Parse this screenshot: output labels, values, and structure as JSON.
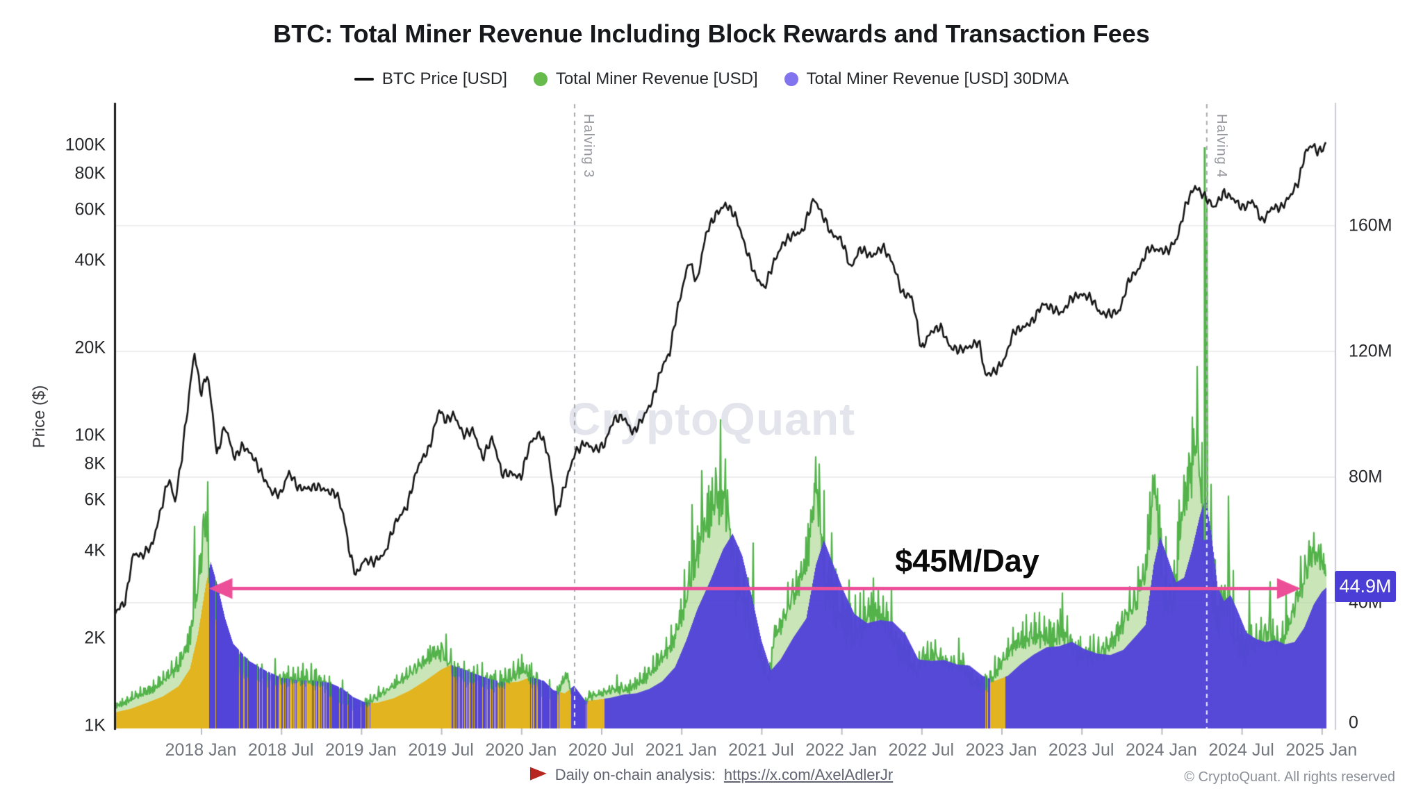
{
  "title": "BTC: Total Miner Revenue Including Block Rewards and Transaction Fees",
  "legend": [
    {
      "marker": "line",
      "color": "#111111",
      "label": "BTC Price [USD]"
    },
    {
      "marker": "dot",
      "color": "#67bb4c",
      "label": "Total Miner Revenue [USD]"
    },
    {
      "marker": "dot",
      "color": "#8273ee",
      "label": "Total Miner Revenue [USD] 30DMA"
    }
  ],
  "watermark": "CryptoQuant",
  "y_left_title": "Price ($)",
  "annotations": {
    "arrow_label": "$45M/Day",
    "current_value_label": "44.9M",
    "halving3_label": "Halving 3",
    "halving4_label": "Halving 4"
  },
  "footer": {
    "note": "Daily on-chain analysis:",
    "link": "https://x.com/AxelAdlerJr",
    "copyright": "© CryptoQuant. All rights reserved"
  },
  "colors": {
    "price_line": "#151515",
    "daily_line": "#53b34a",
    "daily_fill": "rgba(158,209,128,0.55)",
    "revenue_base_yellow": "#e2b41f",
    "dma_fill": "#5244d9",
    "arrow_pink": "#ec4f98",
    "grid": "#ededf1",
    "badge_bg": "#4b3ed6",
    "axis_left": "#1a1a1a",
    "axis_right": "#c9cbd3",
    "halving_dash": "#a7aaaf"
  },
  "chart_data": {
    "type": "line",
    "title": "BTC: Total Miner Revenue Including Block Rewards and Transaction Fees",
    "x_ticks": [
      {
        "label": "2018 Jan",
        "t": 2018.0
      },
      {
        "label": "2018 Jul",
        "t": 2018.5
      },
      {
        "label": "2019 Jan",
        "t": 2019.0
      },
      {
        "label": "2019 Jul",
        "t": 2019.5
      },
      {
        "label": "2020 Jan",
        "t": 2020.0
      },
      {
        "label": "2020 Jul",
        "t": 2020.5
      },
      {
        "label": "2021 Jan",
        "t": 2021.0
      },
      {
        "label": "2021 Jul",
        "t": 2021.5
      },
      {
        "label": "2022 Jan",
        "t": 2022.0
      },
      {
        "label": "2022 Jul",
        "t": 2022.5
      },
      {
        "label": "2023 Jan",
        "t": 2023.0
      },
      {
        "label": "2023 Jul",
        "t": 2023.5
      },
      {
        "label": "2024 Jan",
        "t": 2024.0
      },
      {
        "label": "2024 Jul",
        "t": 2024.5
      },
      {
        "label": "2025 Jan",
        "t": 2025.0
      }
    ],
    "left_axis": {
      "label": "Price ($)",
      "scale": "log",
      "ticks": [
        {
          "label": "100K",
          "value": 100000
        },
        {
          "label": "80K",
          "value": 80000
        },
        {
          "label": "60K",
          "value": 60000
        },
        {
          "label": "40K",
          "value": 40000
        },
        {
          "label": "20K",
          "value": 20000
        },
        {
          "label": "10K",
          "value": 10000
        },
        {
          "label": "8K",
          "value": 8000
        },
        {
          "label": "6K",
          "value": 6000
        },
        {
          "label": "4K",
          "value": 4000
        },
        {
          "label": "2K",
          "value": 2000
        },
        {
          "label": "1K",
          "value": 1000
        }
      ]
    },
    "right_axis": {
      "unit": "USD per day, millions",
      "scale": "linear",
      "ticks": [
        {
          "label": "160M",
          "value": 160
        },
        {
          "label": "120M",
          "value": 120
        },
        {
          "label": "80M",
          "value": 80
        },
        {
          "label": "40M",
          "value": 40
        },
        {
          "label": "0",
          "value": 0
        }
      ]
    },
    "halvings": [
      {
        "label": "Halving 3",
        "t": 2020.335
      },
      {
        "label": "Halving 4",
        "t": 2024.284,
        "spike_musd": 185
      }
    ],
    "arrow": {
      "level_musd": 45,
      "from_t": 2018.05,
      "to_t": 2024.87,
      "label": "$45M/Day"
    },
    "current_30dma_musd": 44.9,
    "yellow_era_end_t": 2020.52,
    "yellow_extra_span": [
      2022.895,
      2023.025
    ],
    "series": {
      "btc_price_usd": [
        [
          2017.466,
          2450
        ],
        [
          2017.53,
          2650
        ],
        [
          2017.58,
          3900
        ],
        [
          2017.63,
          3850
        ],
        [
          2017.7,
          4300
        ],
        [
          2017.75,
          5600
        ],
        [
          2017.8,
          7200
        ],
        [
          2017.84,
          5900
        ],
        [
          2017.88,
          8200
        ],
        [
          2017.92,
          12500
        ],
        [
          2017.96,
          19200
        ],
        [
          2018.0,
          13900
        ],
        [
          2018.04,
          16400
        ],
        [
          2018.1,
          8600
        ],
        [
          2018.15,
          10900
        ],
        [
          2018.21,
          8300
        ],
        [
          2018.26,
          9100
        ],
        [
          2018.32,
          8400
        ],
        [
          2018.38,
          7300
        ],
        [
          2018.44,
          6400
        ],
        [
          2018.5,
          6300
        ],
        [
          2018.55,
          7450
        ],
        [
          2018.61,
          6500
        ],
        [
          2018.67,
          6450
        ],
        [
          2018.73,
          6600
        ],
        [
          2018.79,
          6450
        ],
        [
          2018.85,
          6350
        ],
        [
          2018.89,
          5400
        ],
        [
          2018.93,
          3950
        ],
        [
          2018.97,
          3300
        ],
        [
          2019.02,
          3700
        ],
        [
          2019.08,
          3650
        ],
        [
          2019.15,
          3950
        ],
        [
          2019.22,
          5150
        ],
        [
          2019.29,
          5800
        ],
        [
          2019.36,
          7900
        ],
        [
          2019.43,
          9000
        ],
        [
          2019.49,
          12200
        ],
        [
          2019.53,
          11200
        ],
        [
          2019.58,
          11900
        ],
        [
          2019.64,
          10100
        ],
        [
          2019.7,
          10400
        ],
        [
          2019.76,
          8200
        ],
        [
          2019.82,
          9600
        ],
        [
          2019.88,
          7300
        ],
        [
          2019.94,
          7400
        ],
        [
          2020.0,
          7200
        ],
        [
          2020.06,
          9500
        ],
        [
          2020.12,
          10100
        ],
        [
          2020.17,
          8500
        ],
        [
          2020.22,
          5200
        ],
        [
          2020.28,
          6900
        ],
        [
          2020.34,
          8900
        ],
        [
          2020.4,
          9600
        ],
        [
          2020.46,
          9000
        ],
        [
          2020.52,
          9250
        ],
        [
          2020.58,
          11300
        ],
        [
          2020.64,
          11600
        ],
        [
          2020.7,
          10300
        ],
        [
          2020.76,
          11600
        ],
        [
          2020.82,
          13200
        ],
        [
          2020.88,
          17000
        ],
        [
          2020.93,
          19000
        ],
        [
          2020.97,
          25500
        ],
        [
          2021.01,
          32000
        ],
        [
          2021.05,
          39800
        ],
        [
          2021.1,
          33500
        ],
        [
          2021.16,
          50500
        ],
        [
          2021.22,
          57500
        ],
        [
          2021.28,
          61500
        ],
        [
          2021.34,
          56000
        ],
        [
          2021.4,
          44500
        ],
        [
          2021.46,
          36000
        ],
        [
          2021.52,
          32500
        ],
        [
          2021.58,
          39800
        ],
        [
          2021.64,
          46000
        ],
        [
          2021.7,
          48800
        ],
        [
          2021.76,
          50500
        ],
        [
          2021.83,
          66500
        ],
        [
          2021.88,
          59000
        ],
        [
          2021.94,
          50000
        ],
        [
          2022.0,
          47400
        ],
        [
          2022.06,
          37200
        ],
        [
          2022.12,
          43800
        ],
        [
          2022.19,
          41500
        ],
        [
          2022.26,
          45000
        ],
        [
          2022.32,
          39500
        ],
        [
          2022.38,
          30500
        ],
        [
          2022.44,
          29500
        ],
        [
          2022.5,
          19400
        ],
        [
          2022.56,
          22600
        ],
        [
          2022.62,
          23800
        ],
        [
          2022.68,
          20200
        ],
        [
          2022.74,
          19600
        ],
        [
          2022.8,
          19900
        ],
        [
          2022.86,
          20900
        ],
        [
          2022.9,
          16100
        ],
        [
          2022.96,
          16800
        ],
        [
          2023.02,
          18500
        ],
        [
          2023.08,
          23200
        ],
        [
          2023.14,
          23600
        ],
        [
          2023.2,
          24800
        ],
        [
          2023.26,
          28400
        ],
        [
          2023.32,
          27600
        ],
        [
          2023.38,
          26800
        ],
        [
          2023.44,
          30100
        ],
        [
          2023.5,
          30500
        ],
        [
          2023.56,
          29400
        ],
        [
          2023.62,
          25900
        ],
        [
          2023.68,
          26100
        ],
        [
          2023.74,
          26900
        ],
        [
          2023.8,
          34600
        ],
        [
          2023.86,
          37200
        ],
        [
          2023.92,
          43400
        ],
        [
          2023.98,
          42800
        ],
        [
          2024.04,
          42800
        ],
        [
          2024.1,
          48000
        ],
        [
          2024.16,
          64500
        ],
        [
          2024.21,
          72500
        ],
        [
          2024.27,
          66500
        ],
        [
          2024.33,
          60500
        ],
        [
          2024.39,
          68500
        ],
        [
          2024.45,
          66000
        ],
        [
          2024.51,
          61800
        ],
        [
          2024.57,
          65500
        ],
        [
          2024.63,
          54500
        ],
        [
          2024.69,
          60500
        ],
        [
          2024.75,
          60500
        ],
        [
          2024.81,
          67500
        ],
        [
          2024.86,
          76000
        ],
        [
          2024.9,
          95500
        ],
        [
          2024.94,
          100800
        ],
        [
          2024.98,
          94500
        ],
        [
          2025.02,
          97500
        ],
        [
          2025.027,
          100500
        ]
      ],
      "miner_revenue_30dma_musd": [
        [
          2017.466,
          5.2
        ],
        [
          2017.56,
          6.3
        ],
        [
          2017.66,
          8.2
        ],
        [
          2017.76,
          10.2
        ],
        [
          2017.86,
          13.5
        ],
        [
          2017.93,
          19
        ],
        [
          2017.98,
          30
        ],
        [
          2018.03,
          46
        ],
        [
          2018.06,
          53
        ],
        [
          2018.1,
          46
        ],
        [
          2018.15,
          35
        ],
        [
          2018.2,
          27
        ],
        [
          2018.3,
          21.5
        ],
        [
          2018.4,
          18.5
        ],
        [
          2018.5,
          16.2
        ],
        [
          2018.6,
          15.4
        ],
        [
          2018.7,
          15.2
        ],
        [
          2018.8,
          14.6
        ],
        [
          2018.88,
          12.8
        ],
        [
          2018.95,
          10
        ],
        [
          2019.02,
          8.4
        ],
        [
          2019.1,
          8.2
        ],
        [
          2019.2,
          9.6
        ],
        [
          2019.3,
          12
        ],
        [
          2019.4,
          15.2
        ],
        [
          2019.5,
          18.8
        ],
        [
          2019.56,
          20.3
        ],
        [
          2019.62,
          19.2
        ],
        [
          2019.7,
          17.6
        ],
        [
          2019.8,
          15.8
        ],
        [
          2019.9,
          14.6
        ],
        [
          2019.98,
          14.9
        ],
        [
          2020.06,
          16.4
        ],
        [
          2020.14,
          15.2
        ],
        [
          2020.2,
          12.2
        ],
        [
          2020.27,
          11.2
        ],
        [
          2020.33,
          13.6
        ],
        [
          2020.4,
          8.8
        ],
        [
          2020.48,
          9.2
        ],
        [
          2020.56,
          9.8
        ],
        [
          2020.64,
          10.8
        ],
        [
          2020.72,
          11.2
        ],
        [
          2020.8,
          12.6
        ],
        [
          2020.88,
          15
        ],
        [
          2020.96,
          19.5
        ],
        [
          2021.03,
          28
        ],
        [
          2021.1,
          38
        ],
        [
          2021.18,
          47
        ],
        [
          2021.26,
          57
        ],
        [
          2021.32,
          62
        ],
        [
          2021.38,
          55
        ],
        [
          2021.44,
          42
        ],
        [
          2021.5,
          28
        ],
        [
          2021.56,
          18.5
        ],
        [
          2021.62,
          22
        ],
        [
          2021.7,
          29
        ],
        [
          2021.78,
          35
        ],
        [
          2021.84,
          52
        ],
        [
          2021.89,
          60
        ],
        [
          2021.95,
          52
        ],
        [
          2022.02,
          43
        ],
        [
          2022.08,
          36.5
        ],
        [
          2022.16,
          33.5
        ],
        [
          2022.24,
          34.5
        ],
        [
          2022.32,
          34
        ],
        [
          2022.4,
          30
        ],
        [
          2022.48,
          22
        ],
        [
          2022.56,
          21.5
        ],
        [
          2022.64,
          21.8
        ],
        [
          2022.72,
          20.4
        ],
        [
          2022.8,
          20
        ],
        [
          2022.88,
          16.8
        ],
        [
          2022.96,
          15.2
        ],
        [
          2023.04,
          16.8
        ],
        [
          2023.12,
          20.5
        ],
        [
          2023.2,
          23.5
        ],
        [
          2023.28,
          25.8
        ],
        [
          2023.36,
          26.2
        ],
        [
          2023.44,
          27.6
        ],
        [
          2023.52,
          25.2
        ],
        [
          2023.6,
          23.8
        ],
        [
          2023.68,
          23.4
        ],
        [
          2023.76,
          25
        ],
        [
          2023.84,
          29.5
        ],
        [
          2023.9,
          33
        ],
        [
          2023.95,
          52
        ],
        [
          2023.99,
          61
        ],
        [
          2024.04,
          54
        ],
        [
          2024.09,
          46.5
        ],
        [
          2024.14,
          48
        ],
        [
          2024.19,
          57
        ],
        [
          2024.24,
          68
        ],
        [
          2024.275,
          73.5
        ],
        [
          2024.31,
          62
        ],
        [
          2024.35,
          45
        ],
        [
          2024.39,
          40.5
        ],
        [
          2024.43,
          42.5
        ],
        [
          2024.47,
          38
        ],
        [
          2024.53,
          30.5
        ],
        [
          2024.59,
          28.5
        ],
        [
          2024.65,
          27.5
        ],
        [
          2024.71,
          28.2
        ],
        [
          2024.77,
          26.8
        ],
        [
          2024.83,
          27.5
        ],
        [
          2024.89,
          32
        ],
        [
          2024.95,
          39.5
        ],
        [
          2025.0,
          43.5
        ],
        [
          2025.03,
          44.9
        ]
      ],
      "miner_revenue_daily_spikes_musd": [
        [
          2017.96,
          67
        ],
        [
          2018.03,
          54
        ],
        [
          2019.51,
          26
        ],
        [
          2020.03,
          19
        ],
        [
          2020.1,
          18
        ],
        [
          2021.07,
          77
        ],
        [
          2021.13,
          84
        ],
        [
          2021.21,
          80
        ],
        [
          2021.29,
          76
        ],
        [
          2021.45,
          60
        ],
        [
          2021.86,
          70
        ],
        [
          2021.94,
          65
        ],
        [
          2022.05,
          48
        ],
        [
          2023.37,
          40
        ],
        [
          2023.93,
          68
        ],
        [
          2023.99,
          72
        ],
        [
          2024.13,
          70
        ],
        [
          2024.2,
          77
        ],
        [
          2024.283,
          185
        ],
        [
          2024.31,
          80
        ],
        [
          2024.42,
          76
        ],
        [
          2024.55,
          45
        ],
        [
          2024.68,
          47
        ],
        [
          2024.78,
          44
        ],
        [
          2024.92,
          60
        ],
        [
          2024.98,
          58
        ],
        [
          2025.0,
          56
        ]
      ]
    }
  }
}
